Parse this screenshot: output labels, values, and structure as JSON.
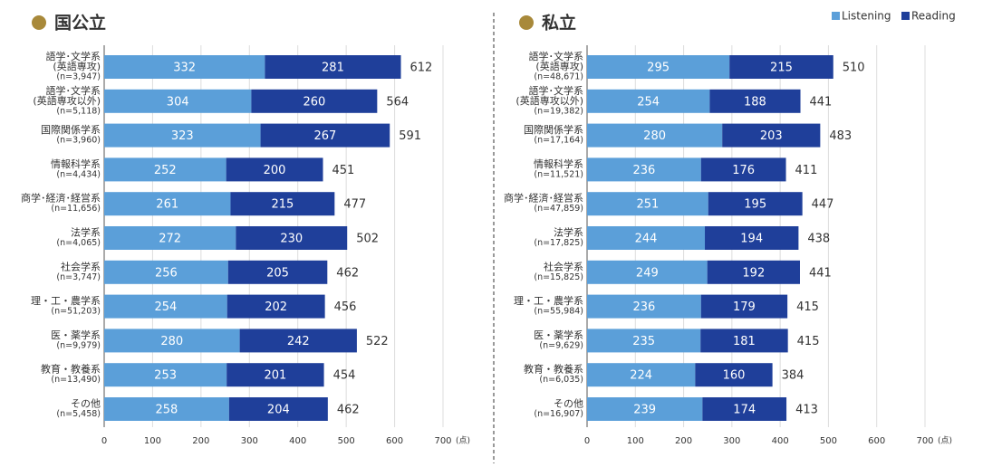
{
  "chart_data": [
    {
      "type": "stacked-bar-horizontal",
      "title": "国公立",
      "categories": [
        [
          "語学･文学系",
          "(英語専攻)",
          "(n=3,947)"
        ],
        [
          "語学･文学系",
          "(英語専攻以外)",
          "(n=5,118)"
        ],
        [
          "国際関係学系",
          "(n=3,960)"
        ],
        [
          "情報科学系",
          "(n=4,434)"
        ],
        [
          "商学･経済･経営系",
          "(n=11,656)"
        ],
        [
          "法学系",
          "(n=4,065)"
        ],
        [
          "社会学系",
          "(n=3,747)"
        ],
        [
          "理・工・農学系",
          "(n=51,203)"
        ],
        [
          "医・薬学系",
          "(n=9,979)"
        ],
        [
          "教育・教養系",
          "(n=13,490)"
        ],
        [
          "その他",
          "(n=5,458)"
        ]
      ],
      "series": [
        {
          "name": "Listening",
          "color": "#5b9fd9",
          "values": [
            332,
            304,
            323,
            252,
            261,
            272,
            256,
            254,
            280,
            253,
            258
          ]
        },
        {
          "name": "Reading",
          "color": "#1f3f9a",
          "values": [
            281,
            260,
            267,
            200,
            215,
            230,
            205,
            202,
            242,
            201,
            204
          ]
        }
      ],
      "totals": [
        612,
        564,
        591,
        451,
        477,
        502,
        462,
        456,
        522,
        454,
        462
      ],
      "xlim": [
        0,
        700
      ],
      "xticks": [
        0,
        100,
        200,
        300,
        400,
        500,
        600,
        700
      ],
      "x_unit": "(点)",
      "grid": true
    },
    {
      "type": "stacked-bar-horizontal",
      "title": "私立",
      "categories": [
        [
          "語学･文学系",
          "(英語専攻)",
          "(n=48,671)"
        ],
        [
          "語学･文学系",
          "(英語専攻以外)",
          "(n=19,382)"
        ],
        [
          "国際関係学系",
          "(n=17,164)"
        ],
        [
          "情報科学系",
          "(n=11,521)"
        ],
        [
          "商学･経済･経営系",
          "(n=47,859)"
        ],
        [
          "法学系",
          "(n=17,825)"
        ],
        [
          "社会学系",
          "(n=15,825)"
        ],
        [
          "理・工・農学系",
          "(n=55,984)"
        ],
        [
          "医・薬学系",
          "(n=9,629)"
        ],
        [
          "教育・教養系",
          "(n=6,035)"
        ],
        [
          "その他",
          "(n=16,907)"
        ]
      ],
      "series": [
        {
          "name": "Listening",
          "color": "#5b9fd9",
          "values": [
            295,
            254,
            280,
            236,
            251,
            244,
            249,
            236,
            235,
            224,
            239
          ]
        },
        {
          "name": "Reading",
          "color": "#1f3f9a",
          "values": [
            215,
            188,
            203,
            176,
            195,
            194,
            192,
            179,
            181,
            160,
            174
          ]
        }
      ],
      "totals": [
        510,
        441,
        483,
        411,
        447,
        438,
        441,
        415,
        415,
        384,
        413
      ],
      "xlim": [
        0,
        700
      ],
      "xticks": [
        0,
        100,
        200,
        300,
        400,
        500,
        600,
        700
      ],
      "x_unit": "(点)",
      "grid": true,
      "legend": "top-right"
    }
  ]
}
